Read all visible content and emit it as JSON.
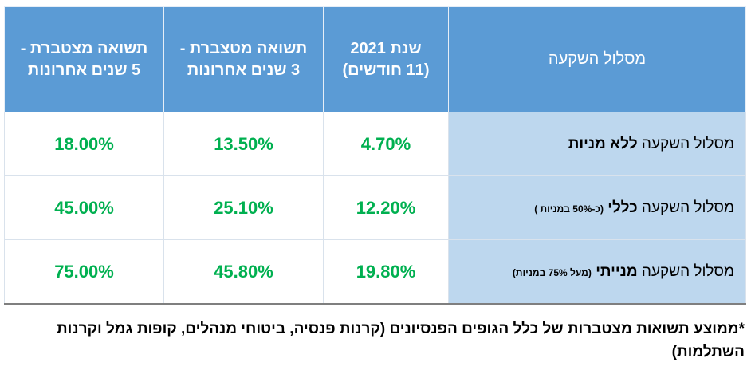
{
  "table": {
    "header": [
      "מסלול השקעה",
      "שנת 2021",
      "(11 חודשים)",
      "תשואה מטצברת -",
      "3 שנים אחרונות",
      "תשואה מצטברת -",
      "5 שנים אחרונות"
    ],
    "rows": [
      {
        "prefix": "מסלול השקעה",
        "bold": "ללא מניות",
        "values": [
          "4.70%",
          "13.50%",
          "18.00%"
        ]
      },
      {
        "prefix": "מסלול השקעה",
        "bold": "כללי",
        "note": "(כ-50% במניות )",
        "values": [
          "12.20%",
          "25.10%",
          "45.00%"
        ]
      },
      {
        "prefix": "מסלול השקעה",
        "bold": "מנייתי",
        "note": "(מעל 75% במניות)",
        "values": [
          "19.80%",
          "45.80%",
          "75.00%"
        ]
      }
    ]
  },
  "footnote": "*ממוצע תשואות מצטברות של כלל הגופים הפנסיונים (קרנות פנסיה, ביטוחי מנהלים, קופות גמל וקרנות השתלמות)"
}
